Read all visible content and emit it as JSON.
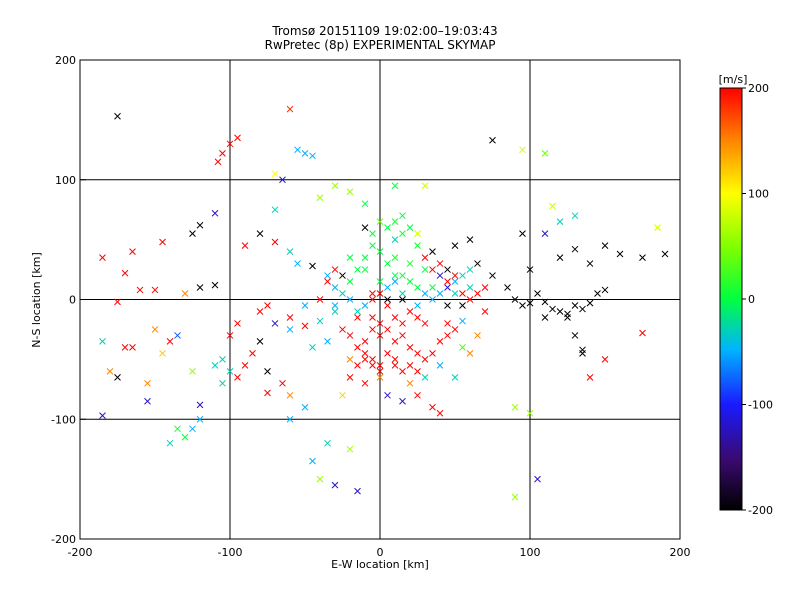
{
  "chart_data": {
    "type": "scatter",
    "title": "Tromsø 20151109 19:02:00–19:03:43",
    "subtitle": "RwPretec (8p) EXPERIMENTAL SKYMAP",
    "xlabel": "E-W location [km]",
    "ylabel": "N-S location [km]",
    "xlim": [
      -200,
      200
    ],
    "ylim": [
      -200,
      200
    ],
    "xticks": [
      "-200",
      "-100",
      "0",
      "100",
      "200"
    ],
    "yticks": [
      "-200",
      "-100",
      "0",
      "100",
      "200"
    ],
    "grid": true,
    "colorbar": {
      "label": "[m/s]",
      "range": [
        -200,
        200
      ],
      "ticks": [
        "200",
        "100",
        "0",
        "-100",
        "-200"
      ],
      "colormap": "rainbow (black-purple-blue-cyan-green-yellow-orange-red)"
    },
    "markers": {
      "large": "x",
      "small": "dot"
    },
    "points": [
      [
        -175,
        153,
        -200,
        1
      ],
      [
        -60,
        159,
        180,
        1
      ],
      [
        -100,
        130,
        200,
        1
      ],
      [
        -95,
        135,
        200,
        1
      ],
      [
        -105,
        122,
        200,
        1
      ],
      [
        -108,
        115,
        200,
        1
      ],
      [
        -50,
        122,
        -50,
        1
      ],
      [
        -55,
        125,
        -50,
        1
      ],
      [
        -45,
        120,
        -50,
        1
      ],
      [
        -70,
        105,
        100,
        1
      ],
      [
        -65,
        100,
        -120,
        1
      ],
      [
        -30,
        95,
        60,
        1
      ],
      [
        -40,
        85,
        60,
        1
      ],
      [
        -20,
        90,
        60,
        1
      ],
      [
        -10,
        80,
        0,
        1
      ],
      [
        10,
        95,
        0,
        1
      ],
      [
        30,
        95,
        80,
        1
      ],
      [
        75,
        133,
        -200,
        1
      ],
      [
        95,
        125,
        80,
        1
      ],
      [
        110,
        122,
        40,
        1
      ],
      [
        -70,
        75,
        -30,
        1
      ],
      [
        -110,
        72,
        -120,
        1
      ],
      [
        -120,
        62,
        -200,
        1
      ],
      [
        -125,
        55,
        -200,
        1
      ],
      [
        -145,
        48,
        200,
        1
      ],
      [
        -165,
        40,
        200,
        1
      ],
      [
        -185,
        35,
        200,
        1
      ],
      [
        -170,
        22,
        200,
        1
      ],
      [
        -160,
        8,
        200,
        1
      ],
      [
        -150,
        8,
        200,
        1
      ],
      [
        -175,
        -2,
        200,
        1
      ],
      [
        -130,
        5,
        150,
        1
      ],
      [
        -120,
        10,
        -200,
        1
      ],
      [
        -110,
        12,
        -200,
        1
      ],
      [
        -150,
        -25,
        150,
        1
      ],
      [
        -135,
        -30,
        -80,
        1
      ],
      [
        -185,
        -35,
        -30,
        1
      ],
      [
        -165,
        -40,
        200,
        1
      ],
      [
        -145,
        -45,
        120,
        1
      ],
      [
        -180,
        -60,
        150,
        1
      ],
      [
        -175,
        -65,
        -200,
        1
      ],
      [
        -155,
        -70,
        150,
        1
      ],
      [
        -110,
        -55,
        -30,
        1
      ],
      [
        -100,
        -60,
        -30,
        1
      ],
      [
        -105,
        -70,
        -30,
        1
      ],
      [
        -75,
        -60,
        -200,
        1
      ],
      [
        -185,
        -97,
        -120,
        1
      ],
      [
        -155,
        -85,
        -120,
        1
      ],
      [
        -120,
        -88,
        -120,
        1
      ],
      [
        -125,
        -108,
        -50,
        1
      ],
      [
        -135,
        -108,
        10,
        1
      ],
      [
        -140,
        -120,
        -30,
        1
      ],
      [
        -120,
        -100,
        -50,
        1
      ],
      [
        -60,
        -100,
        -50,
        1
      ],
      [
        -50,
        -90,
        -50,
        1
      ],
      [
        -90,
        45,
        200,
        1
      ],
      [
        -80,
        55,
        -200,
        1
      ],
      [
        -70,
        48,
        200,
        1
      ],
      [
        -60,
        40,
        -30,
        1
      ],
      [
        -55,
        30,
        -50,
        1
      ],
      [
        -45,
        28,
        -200,
        1
      ],
      [
        -35,
        20,
        -50,
        1
      ],
      [
        -30,
        10,
        -50,
        1
      ],
      [
        -40,
        0,
        200,
        1
      ],
      [
        -50,
        -5,
        -50,
        1
      ],
      [
        -30,
        -10,
        -30,
        1
      ],
      [
        -25,
        -25,
        200,
        1
      ],
      [
        -20,
        -30,
        200,
        1
      ],
      [
        -15,
        -40,
        200,
        1
      ],
      [
        -10,
        -50,
        200,
        1
      ],
      [
        -5,
        -55,
        200,
        1
      ],
      [
        0,
        -60,
        200,
        1
      ],
      [
        10,
        -55,
        200,
        1
      ],
      [
        15,
        -60,
        200,
        1
      ],
      [
        20,
        -70,
        150,
        1
      ],
      [
        5,
        -80,
        -120,
        1
      ],
      [
        15,
        -85,
        -120,
        1
      ],
      [
        25,
        -80,
        200,
        1
      ],
      [
        35,
        -90,
        200,
        1
      ],
      [
        40,
        -95,
        200,
        1
      ],
      [
        30,
        -65,
        -30,
        1
      ],
      [
        40,
        -55,
        -50,
        1
      ],
      [
        55,
        -40,
        30,
        1
      ],
      [
        60,
        -45,
        150,
        1
      ],
      [
        50,
        -65,
        -30,
        1
      ],
      [
        65,
        -30,
        150,
        1
      ],
      [
        45,
        -20,
        200,
        1
      ],
      [
        55,
        -18,
        -50,
        1
      ],
      [
        70,
        -10,
        200,
        1
      ],
      [
        50,
        5,
        -30,
        1
      ],
      [
        60,
        10,
        -30,
        1
      ],
      [
        40,
        20,
        -120,
        1
      ],
      [
        30,
        25,
        0,
        1
      ],
      [
        20,
        30,
        10,
        1
      ],
      [
        10,
        20,
        0,
        1
      ],
      [
        0,
        15,
        0,
        1
      ],
      [
        -10,
        25,
        0,
        1
      ],
      [
        -20,
        15,
        0,
        1
      ],
      [
        -5,
        5,
        200,
        1
      ],
      [
        5,
        -5,
        200,
        1
      ],
      [
        15,
        5,
        -30,
        1
      ],
      [
        25,
        -5,
        -50,
        1
      ],
      [
        35,
        10,
        0,
        1
      ],
      [
        45,
        25,
        -200,
        1
      ],
      [
        25,
        45,
        10,
        1
      ],
      [
        35,
        40,
        -200,
        1
      ],
      [
        50,
        45,
        -200,
        1
      ],
      [
        60,
        50,
        -200,
        1
      ],
      [
        65,
        30,
        -200,
        1
      ],
      [
        75,
        20,
        -200,
        1
      ],
      [
        85,
        10,
        -200,
        1
      ],
      [
        90,
        0,
        -200,
        1
      ],
      [
        95,
        -5,
        -200,
        1
      ],
      [
        100,
        -3,
        -200,
        1
      ],
      [
        105,
        5,
        -200,
        1
      ],
      [
        110,
        -2,
        -200,
        1
      ],
      [
        115,
        -8,
        -200,
        1
      ],
      [
        120,
        -10,
        -200,
        1
      ],
      [
        125,
        -12,
        -200,
        1
      ],
      [
        130,
        -5,
        -200,
        1
      ],
      [
        135,
        -8,
        -200,
        1
      ],
      [
        140,
        -3,
        -200,
        1
      ],
      [
        145,
        5,
        -200,
        1
      ],
      [
        150,
        8,
        -200,
        1
      ],
      [
        125,
        -15,
        -200,
        1
      ],
      [
        110,
        -15,
        -200,
        1
      ],
      [
        130,
        -30,
        -200,
        1
      ],
      [
        135,
        -45,
        -200,
        1
      ],
      [
        100,
        25,
        -200,
        1
      ],
      [
        120,
        35,
        -200,
        1
      ],
      [
        130,
        42,
        -200,
        1
      ],
      [
        140,
        30,
        -200,
        1
      ],
      [
        150,
        45,
        -200,
        1
      ],
      [
        160,
        38,
        -200,
        1
      ],
      [
        175,
        35,
        -200,
        1
      ],
      [
        190,
        38,
        -200,
        1
      ],
      [
        185,
        60,
        80,
        1
      ],
      [
        110,
        55,
        -120,
        1
      ],
      [
        120,
        65,
        -30,
        1
      ],
      [
        130,
        70,
        -30,
        1
      ],
      [
        95,
        55,
        -200,
        1
      ],
      [
        115,
        78,
        80,
        1
      ],
      [
        140,
        -65,
        200,
        1
      ],
      [
        175,
        -28,
        200,
        1
      ],
      [
        150,
        -50,
        200,
        1
      ],
      [
        135,
        -42,
        -200,
        1
      ],
      [
        100,
        -95,
        60,
        1
      ],
      [
        90,
        -90,
        60,
        1
      ],
      [
        105,
        -150,
        -120,
        1
      ],
      [
        90,
        -165,
        60,
        1
      ],
      [
        -30,
        -155,
        -120,
        1
      ],
      [
        -40,
        -150,
        60,
        1
      ],
      [
        -15,
        -160,
        -120,
        1
      ],
      [
        -20,
        -125,
        60,
        1
      ],
      [
        -35,
        -120,
        -30,
        1
      ],
      [
        -45,
        -135,
        -50,
        1
      ],
      [
        0,
        -65,
        150,
        1
      ],
      [
        -25,
        -80,
        120,
        1
      ],
      [
        -20,
        -50,
        150,
        1
      ],
      [
        -10,
        -35,
        200,
        1
      ],
      [
        -5,
        -25,
        200,
        1
      ],
      [
        0,
        -30,
        200,
        1
      ],
      [
        -15,
        -15,
        200,
        1
      ],
      [
        -35,
        -35,
        -50,
        1
      ],
      [
        -45,
        -40,
        -30,
        1
      ],
      [
        -60,
        -25,
        -50,
        1
      ],
      [
        -70,
        -20,
        -120,
        1
      ],
      [
        -80,
        -35,
        -200,
        1
      ],
      [
        -85,
        -45,
        200,
        1
      ],
      [
        -90,
        -55,
        200,
        1
      ],
      [
        -95,
        -65,
        200,
        1
      ],
      [
        -75,
        -78,
        200,
        1
      ],
      [
        -60,
        -80,
        150,
        1
      ],
      [
        -65,
        -70,
        200,
        1
      ],
      [
        -105,
        -50,
        -30,
        1
      ],
      [
        -100,
        -30,
        200,
        1
      ],
      [
        -95,
        -20,
        200,
        1
      ],
      [
        -80,
        -10,
        200,
        1
      ],
      [
        -75,
        -5,
        200,
        1
      ],
      [
        -60,
        -15,
        200,
        1
      ],
      [
        -50,
        -22,
        200,
        1
      ],
      [
        -40,
        -18,
        -30,
        1
      ],
      [
        -30,
        -5,
        -50,
        1
      ],
      [
        -25,
        5,
        -30,
        1
      ],
      [
        -20,
        0,
        -50,
        1
      ],
      [
        -15,
        -10,
        -30,
        1
      ],
      [
        -10,
        -5,
        -50,
        1
      ],
      [
        -5,
        -15,
        200,
        1
      ],
      [
        0,
        -20,
        200,
        1
      ],
      [
        5,
        -25,
        200,
        1
      ],
      [
        10,
        -35,
        200,
        1
      ],
      [
        15,
        -30,
        200,
        1
      ],
      [
        20,
        -40,
        200,
        1
      ],
      [
        25,
        -45,
        200,
        1
      ],
      [
        30,
        -50,
        200,
        1
      ],
      [
        -10,
        -45,
        200,
        1
      ],
      [
        -5,
        -50,
        200,
        1
      ],
      [
        5,
        -45,
        200,
        1
      ],
      [
        10,
        -50,
        200,
        1
      ],
      [
        0,
        -55,
        200,
        1
      ],
      [
        -15,
        -55,
        200,
        1
      ],
      [
        -20,
        -65,
        200,
        1
      ],
      [
        -10,
        -70,
        200,
        1
      ],
      [
        20,
        -55,
        200,
        1
      ],
      [
        25,
        -60,
        200,
        1
      ],
      [
        35,
        -45,
        200,
        1
      ],
      [
        40,
        -35,
        200,
        1
      ],
      [
        45,
        -30,
        200,
        1
      ],
      [
        50,
        -25,
        200,
        1
      ],
      [
        10,
        -15,
        200,
        1
      ],
      [
        15,
        -20,
        200,
        1
      ],
      [
        20,
        -10,
        200,
        1
      ],
      [
        25,
        -15,
        200,
        1
      ],
      [
        30,
        -20,
        200,
        1
      ],
      [
        -5,
        0,
        200,
        1
      ],
      [
        0,
        5,
        200,
        1
      ],
      [
        5,
        10,
        -50,
        1
      ],
      [
        10,
        15,
        -50,
        1
      ],
      [
        15,
        20,
        0,
        1
      ],
      [
        20,
        15,
        0,
        1
      ],
      [
        25,
        10,
        0,
        1
      ],
      [
        30,
        5,
        -50,
        1
      ],
      [
        35,
        0,
        -50,
        1
      ],
      [
        40,
        5,
        -50,
        1
      ],
      [
        45,
        10,
        -120,
        1
      ],
      [
        50,
        15,
        -50,
        1
      ],
      [
        55,
        20,
        -30,
        1
      ],
      [
        60,
        25,
        -30,
        1
      ],
      [
        5,
        30,
        0,
        1
      ],
      [
        10,
        35,
        10,
        1
      ],
      [
        0,
        40,
        0,
        1
      ],
      [
        -5,
        45,
        0,
        1
      ],
      [
        -10,
        35,
        0,
        1
      ],
      [
        -15,
        25,
        0,
        1
      ],
      [
        -20,
        35,
        0,
        1
      ],
      [
        -25,
        20,
        -200,
        1
      ],
      [
        -30,
        25,
        200,
        1
      ],
      [
        -35,
        15,
        200,
        1
      ],
      [
        5,
        60,
        0,
        1
      ],
      [
        10,
        65,
        10,
        1
      ],
      [
        15,
        55,
        10,
        1
      ],
      [
        0,
        65,
        40,
        1
      ],
      [
        20,
        60,
        0,
        1
      ],
      [
        15,
        70,
        0,
        1
      ],
      [
        10,
        50,
        -30,
        1
      ],
      [
        -5,
        55,
        0,
        1
      ],
      [
        -10,
        60,
        -200,
        1
      ],
      [
        25,
        55,
        80,
        1
      ],
      [
        30,
        35,
        200,
        1
      ],
      [
        35,
        25,
        200,
        1
      ],
      [
        40,
        30,
        200,
        1
      ],
      [
        45,
        15,
        200,
        1
      ],
      [
        50,
        20,
        200,
        1
      ],
      [
        55,
        5,
        200,
        1
      ],
      [
        60,
        0,
        200,
        1
      ],
      [
        65,
        5,
        200,
        1
      ],
      [
        70,
        10,
        200,
        1
      ],
      [
        55,
        -5,
        -200,
        1
      ],
      [
        45,
        -5,
        -200,
        1
      ],
      [
        15,
        0,
        -200,
        1
      ],
      [
        5,
        0,
        -200,
        1
      ],
      [
        -130,
        -115,
        0,
        1
      ],
      [
        -170,
        -40,
        200,
        1
      ],
      [
        -140,
        -35,
        200,
        1
      ],
      [
        -125,
        -60,
        60,
        1
      ]
    ]
  }
}
